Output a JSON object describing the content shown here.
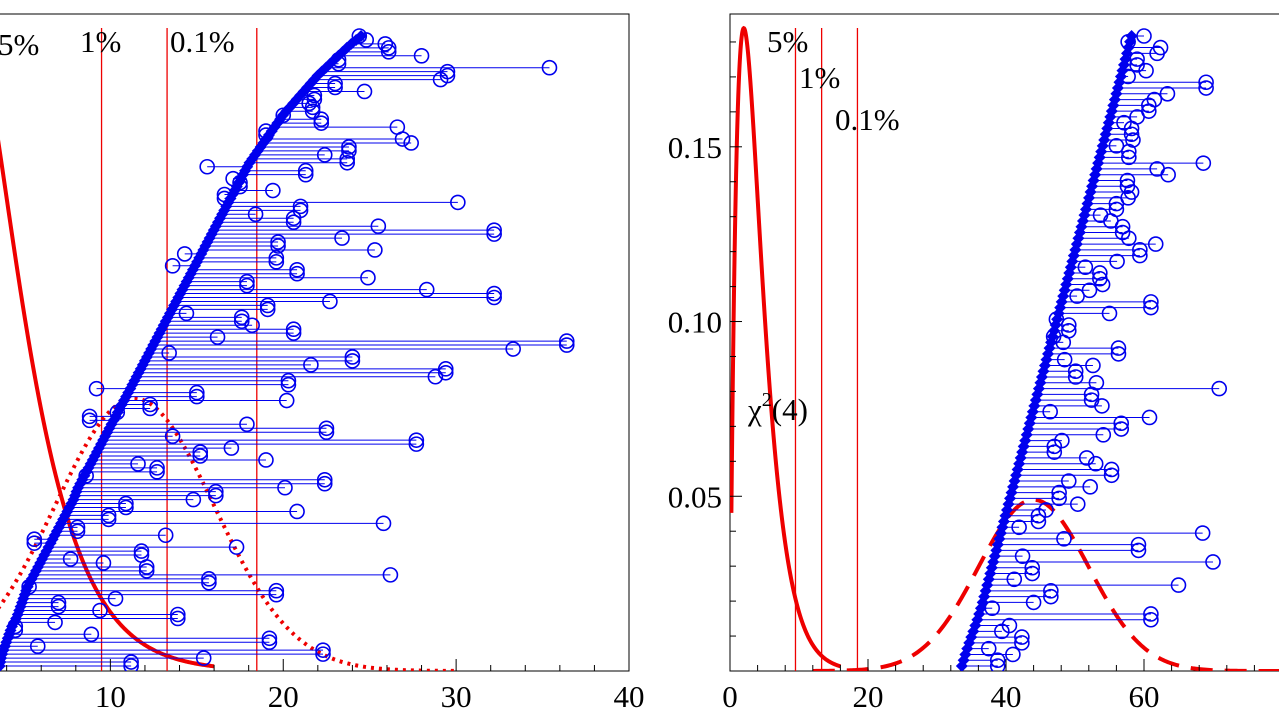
{
  "chart_data": [
    {
      "type": "scatter",
      "title": "",
      "xlabel": "",
      "ylabel": "",
      "xlim": [
        3.5,
        40
      ],
      "ylim": [
        0,
        0.188
      ],
      "x_ticks": [
        "10",
        "20",
        "30",
        "40"
      ],
      "x_tick_values": [
        10,
        20,
        30,
        40
      ],
      "y_ticks": [],
      "critical_lines": [
        {
          "label": "5%",
          "x": 9.49
        },
        {
          "label": "1%",
          "x": 13.28
        },
        {
          "label": "0.1%",
          "x": 18.47
        }
      ],
      "chi2_curve": {
        "df": 4,
        "style": "solid",
        "x_range": [
          3.5,
          16
        ],
        "scale": 1.0
      },
      "reference_curve": {
        "style": "dotted",
        "mean": 11.4,
        "sd": 4.6,
        "peak": 0.078,
        "x_range": [
          3.5,
          30
        ]
      },
      "paired_points": {
        "n": 160,
        "diamond_x": [
          3.6,
          3.7,
          3.9,
          4.1,
          4.3,
          4.6,
          4.8,
          5.0,
          5.2,
          5.5,
          5.8,
          6.1,
          6.4,
          6.7,
          7.0,
          7.3,
          7.6,
          7.9,
          8.1,
          8.4,
          8.7,
          9.0,
          9.3,
          9.6,
          9.9,
          10.2,
          10.5,
          10.8,
          11.1,
          11.4,
          11.7,
          12.0,
          12.3,
          12.6,
          12.9,
          13.2,
          13.5,
          13.8,
          14.1,
          14.4,
          14.7,
          15.0,
          15.3,
          15.6,
          15.9,
          16.2,
          16.5,
          16.8,
          17.1,
          17.4,
          17.7,
          18.0,
          18.4,
          18.8,
          19.2,
          19.6,
          20.0,
          20.5,
          21.0,
          21.5,
          22.0,
          22.6,
          23.2,
          23.8,
          24.5
        ],
        "circle_x": [
          11.2,
          15.4,
          22.3,
          5.8,
          19.2,
          8.9,
          4.5,
          6.8,
          13.9,
          9.4,
          7.0,
          10.3,
          19.6,
          5.3,
          15.7,
          26.2,
          12.1,
          9.6,
          7.7,
          11.8,
          17.3,
          5.6,
          13.2,
          8.1,
          25.8,
          9.9,
          20.8,
          10.9,
          14.8,
          16.1,
          20.1,
          22.4,
          8.6,
          12.7,
          11.6,
          19.0,
          15.2,
          17.0,
          27.7,
          13.6,
          22.5,
          17.9,
          8.8,
          10.4,
          12.3,
          20.2,
          15.0,
          9.2,
          20.3,
          28.8,
          29.4,
          21.6,
          24.0,
          13.4,
          33.3,
          36.4,
          16.2,
          20.6,
          18.2,
          17.6,
          14.4,
          19.1,
          22.7,
          32.2,
          28.3,
          17.9,
          24.9,
          20.8,
          13.6,
          19.6,
          14.3,
          25.3,
          19.7,
          23.4,
          32.2,
          25.5,
          20.6,
          18.4,
          21.0,
          30.1,
          16.6,
          19.4,
          17.5,
          17.1,
          21.3,
          15.6,
          23.7,
          22.4,
          23.8,
          27.4,
          26.9,
          19.0,
          26.6,
          22.2,
          20.0,
          21.7,
          21.5,
          21.8,
          24.7,
          23.0,
          29.1,
          29.5,
          35.4,
          23.2,
          28.0,
          26.1,
          25.9,
          24.8,
          24.4
        ]
      }
    },
    {
      "type": "scatter",
      "title": "",
      "xlabel": "",
      "ylabel": "",
      "xlim": [
        0,
        80
      ],
      "ylim": [
        0,
        0.188
      ],
      "x_ticks": [
        "0",
        "20",
        "40",
        "60"
      ],
      "x_tick_values": [
        0,
        20,
        40,
        60
      ],
      "y_ticks": [
        "0.05",
        "0.10",
        "0.15"
      ],
      "y_tick_values": [
        0.05,
        0.1,
        0.15
      ],
      "critical_lines": [
        {
          "label": "5%",
          "x": 9.49
        },
        {
          "label": "1%",
          "x": 13.28
        },
        {
          "label": "0.1%",
          "x": 18.47
        }
      ],
      "chi2_curve": {
        "df": 4,
        "style": "solid",
        "x_range": [
          0.2,
          16
        ],
        "scale": 1.0,
        "label": "χ²(4)"
      },
      "reference_curve": {
        "style": "dashed",
        "mean": 44,
        "sd": 8,
        "peak": 0.049,
        "x_range": [
          12,
          80
        ]
      },
      "paired_points": {
        "n": 110,
        "diamond_x": [
          33.6,
          34.3,
          35.1,
          35.9,
          36.6,
          37.2,
          37.8,
          38.4,
          39.0,
          39.6,
          40.2,
          40.8,
          41.4,
          42.0,
          42.6,
          43.2,
          43.8,
          44.4,
          45.0,
          45.6,
          46.2,
          46.8,
          47.4,
          48.0,
          48.6,
          49.2,
          49.8,
          50.4,
          51.0,
          51.6,
          52.2,
          52.8,
          53.4,
          54.0,
          54.6,
          55.2,
          55.8,
          56.4,
          57.0,
          57.6,
          58.2
        ],
        "circle_x": [
          38.8,
          41.0,
          37.5,
          42.3,
          39.4,
          40.5,
          61.0,
          38.0,
          44.0,
          46.5,
          65.0,
          41.2,
          43.8,
          70.0,
          42.4,
          59.2,
          48.4,
          68.5,
          41.9,
          44.7,
          45.8,
          50.4,
          47.7,
          52.2,
          49.1,
          55.3,
          53.0,
          51.7,
          47.0,
          48.1,
          54.1,
          56.7,
          60.8,
          46.4,
          53.9,
          52.4,
          70.9,
          53.1,
          50.1,
          52.6,
          48.5,
          56.3,
          48.3,
          46.9,
          49.1,
          47.3,
          55.0,
          61.0,
          50.3,
          52.1,
          54.0,
          53.6,
          51.5,
          56.1,
          59.4,
          61.7,
          57.8,
          56.9,
          55.2,
          53.7,
          56.0,
          57.7,
          58.2,
          57.6,
          63.5,
          61.9,
          68.6,
          57.8,
          56.0,
          58.4,
          58.2,
          57.1,
          59.0,
          60.7,
          61.5,
          63.4,
          69.0,
          57.7,
          60.3,
          59.0,
          61.9,
          62.4,
          57.7,
          60.0
        ]
      }
    }
  ],
  "labels": {
    "left_5": "5%",
    "left_1": "1%",
    "left_01": "0.1%",
    "right_5": "5%",
    "right_1": "1%",
    "right_01": "0.1%",
    "chi_base": "χ",
    "chi_sup": "2",
    "chi_arg": "(4)"
  },
  "colors": {
    "points": "#0000ee",
    "critical": "#ee0000",
    "curve": "#ee0000",
    "frame": "#000000"
  }
}
